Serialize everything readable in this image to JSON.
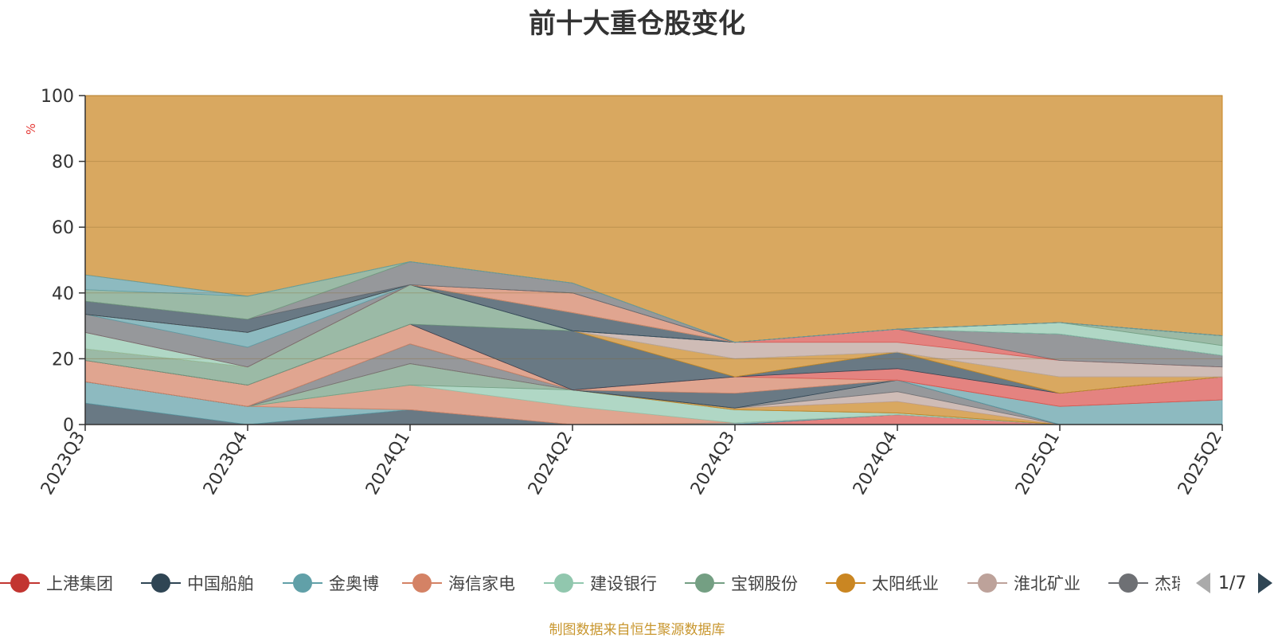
{
  "chart_data": {
    "type": "area",
    "title": "前十大重仓股变化",
    "ylabel": "%",
    "ylim": [
      0,
      100
    ],
    "yticks": [
      0,
      20,
      40,
      60,
      80,
      100
    ],
    "x": [
      "2023Q3",
      "2023Q4",
      "2024Q1",
      "2024Q2",
      "2024Q3",
      "2024Q4",
      "2025Q1",
      "2025Q2"
    ],
    "stacked": true,
    "grid": true,
    "legend_position": "bottom",
    "series": [
      {
        "name": "上港集团",
        "color": "#d9534f",
        "values": [
          0,
          0,
          0,
          0,
          0,
          3,
          0,
          0
        ]
      },
      {
        "name": "中国船舶",
        "color": "#2f4554",
        "values": [
          6.5,
          0,
          4.5,
          0,
          0,
          0,
          0,
          0
        ]
      },
      {
        "name": "金奥博",
        "color": "#61a0a8",
        "values": [
          6.5,
          5.5,
          0,
          0,
          0.5,
          0,
          0,
          0
        ]
      },
      {
        "name": "海信家电",
        "color": "#d48265",
        "values": [
          0,
          0,
          7.5,
          5.5,
          0,
          0,
          0,
          0
        ]
      },
      {
        "name": "建设银行",
        "color": "#91c7ae",
        "values": [
          0,
          0,
          0,
          5,
          4,
          0.5,
          0,
          0
        ]
      },
      {
        "name": "宝钢股份",
        "color": "#749f83",
        "values": [
          0,
          0,
          6.5,
          0,
          0,
          0,
          0,
          0
        ]
      },
      {
        "name": "太阳纸业",
        "color": "#ca8622",
        "values": [
          0,
          0,
          0,
          0,
          0.5,
          3.5,
          0,
          0
        ]
      },
      {
        "name": "淮北矿业",
        "color": "#bda29a",
        "values": [
          0,
          0,
          0,
          0,
          0,
          3,
          0,
          0
        ]
      },
      {
        "name": "杰瑞股份",
        "color": "#6e7074",
        "values": [
          0,
          0,
          6,
          0,
          0,
          3.5,
          0,
          0
        ]
      },
      {
        "name": "海信家电",
        "color": "#d48265",
        "values": [
          0,
          0,
          0,
          0,
          0,
          0,
          0,
          0
        ]
      },
      {
        "name": "中国船舶",
        "color": "#2f4554",
        "values": [
          0,
          0,
          0,
          0,
          4.5,
          0,
          0,
          0
        ]
      },
      {
        "name": "金奥博",
        "color": "#61a0a8",
        "values": [
          0,
          0,
          0,
          0,
          0,
          0,
          5.5,
          7.5
        ]
      },
      {
        "name": "海信家电",
        "color": "#d48265",
        "values": [
          6.5,
          6.5,
          6,
          0,
          5,
          0,
          0,
          0
        ]
      },
      {
        "name": "上港集团",
        "color": "#d9534f",
        "values": [
          0,
          0,
          0,
          0,
          0,
          3.5,
          4,
          7
        ]
      },
      {
        "name": "中国船舶",
        "color": "#2f4554",
        "values": [
          0,
          0,
          0,
          18,
          0,
          5,
          0,
          0
        ]
      },
      {
        "name": "宝钢股份",
        "color": "#749f83",
        "values": [
          3.5,
          5.5,
          12,
          0,
          0,
          0,
          0,
          0
        ]
      },
      {
        "name": "太阳纸业",
        "color": "#ca8622",
        "values": [
          0,
          0,
          0,
          0,
          5.5,
          0,
          5,
          0
        ]
      },
      {
        "name": "建设银行",
        "color": "#91c7ae",
        "values": [
          5,
          0,
          0,
          0,
          0,
          0,
          0,
          0
        ]
      },
      {
        "name": "淮北矿业",
        "color": "#bda29a",
        "values": [
          0,
          0,
          0,
          0,
          5,
          3,
          5,
          3
        ]
      },
      {
        "name": "上港集团",
        "color": "#d9534f",
        "values": [
          0,
          0,
          0,
          0,
          0,
          4,
          0,
          0
        ]
      },
      {
        "name": "杰瑞股份",
        "color": "#6e7074",
        "values": [
          5.5,
          6,
          0,
          0,
          0,
          0,
          8,
          3.5
        ]
      },
      {
        "name": "金奥博",
        "color": "#61a0a8",
        "values": [
          0,
          4.5,
          0,
          0,
          0,
          0,
          0,
          0
        ]
      },
      {
        "name": "淮北矿业",
        "color": "#bda29a",
        "values": [
          0,
          0,
          0,
          0,
          0,
          0,
          0,
          0
        ]
      },
      {
        "name": "中国船舶",
        "color": "#2f4554",
        "values": [
          0,
          0,
          0,
          5.5,
          0,
          0,
          0,
          0
        ]
      },
      {
        "name": "建设银行",
        "color": "#91c7ae",
        "values": [
          0,
          0,
          0,
          0,
          0,
          0,
          3.5,
          3
        ]
      },
      {
        "name": "淮北矿业",
        "color": "#bda29a",
        "values": [
          0,
          0,
          0,
          0,
          0,
          0,
          0,
          0
        ]
      },
      {
        "name": "宝钢股份",
        "color": "#749f83",
        "values": [
          0,
          0,
          0,
          0,
          0,
          0,
          0,
          3
        ]
      },
      {
        "name": "海信家电",
        "color": "#d48265",
        "values": [
          0,
          0,
          0,
          6,
          0,
          0,
          0,
          0
        ]
      },
      {
        "name": "中国船舶",
        "color": "#2f4554",
        "values": [
          4,
          4,
          0,
          0,
          0,
          0,
          0,
          0
        ]
      },
      {
        "name": "淮北矿业",
        "color": "#bda29a",
        "values": [
          0,
          0,
          0,
          0,
          0,
          0,
          0,
          0
        ]
      },
      {
        "name": "杰瑞股份",
        "color": "#6e7074",
        "values": [
          0,
          0,
          0,
          0,
          0,
          0,
          0,
          0
        ]
      },
      {
        "name": "杰瑞股份",
        "color": "#6e7074",
        "values": [
          0,
          0,
          7,
          3,
          0,
          0,
          0,
          0
        ]
      },
      {
        "name": "淮北矿业",
        "color": "#bda29a",
        "values": [
          0,
          0,
          0,
          0,
          0,
          0,
          0,
          0
        ]
      },
      {
        "name": "海信家电",
        "color": "#d48265",
        "values": [
          0,
          0,
          0,
          0,
          0,
          0,
          0,
          0
        ]
      },
      {
        "name": "金奥博",
        "color": "#61a0a8",
        "values": [
          0,
          0,
          0,
          0,
          0,
          0,
          0,
          0
        ]
      },
      {
        "name": "上港集团",
        "color": "#d9534f",
        "values": [
          0,
          0,
          0,
          0,
          0,
          0,
          0,
          0
        ]
      },
      {
        "name": "杰瑞股份",
        "color": "#6e7074",
        "values": [
          0,
          0,
          0,
          0,
          0,
          0,
          0,
          0
        ]
      },
      {
        "name": "淮北矿业",
        "color": "#bda29a",
        "values": [
          0,
          0,
          0,
          0,
          0,
          0,
          0,
          0
        ]
      },
      {
        "name": "宝钢股份",
        "color": "#749f83",
        "values": [
          3.5,
          7,
          0,
          0,
          0,
          0,
          0,
          0
        ]
      },
      {
        "name": "金奥博",
        "color": "#61a0a8",
        "values": [
          4.5,
          0,
          0,
          0,
          0,
          0,
          0,
          0
        ]
      },
      {
        "name": "杰瑞股份",
        "color": "#6e7074",
        "values": [
          0,
          0,
          0,
          0,
          0,
          0,
          0,
          0
        ]
      },
      {
        "name": "宝钢股份",
        "color": "#749f83",
        "values": [
          0,
          0,
          0,
          0,
          0,
          0,
          0,
          0
        ]
      },
      {
        "name": "杰瑞股份",
        "color": "#6e7074",
        "values": [
          0,
          0,
          0,
          0,
          0,
          0,
          0,
          0
        ]
      },
      {
        "name": "宝钢股份",
        "color": "#749f83",
        "values": [
          0,
          0,
          0,
          0,
          0,
          0,
          0,
          0
        ]
      },
      {
        "name": "杰瑞股份",
        "color": "#6e7074",
        "values": [
          0,
          0,
          0,
          0,
          0,
          0,
          0,
          0
        ]
      },
      {
        "name": "宝钢股份",
        "color": "#749f83",
        "values": [
          0,
          0,
          0,
          0,
          0,
          0,
          0,
          0
        ]
      },
      {
        "name": "杰瑞股份",
        "color": "#6e7074",
        "values": [
          0,
          0,
          0,
          0,
          0,
          0,
          0,
          0
        ]
      },
      {
        "name": "宝钢股份",
        "color": "#749f83",
        "values": [
          0,
          0,
          0,
          0,
          0,
          0,
          0,
          0
        ]
      },
      {
        "name": "杰瑞股份",
        "color": "#6e7074",
        "values": [
          0,
          0,
          0,
          0,
          0,
          0,
          0,
          0
        ]
      },
      {
        "name": "宝钢股份",
        "color": "#749f83",
        "values": [
          0,
          0,
          0,
          0,
          0,
          0,
          0,
          0
        ]
      },
      {
        "name": "杰瑞股份",
        "color": "#6e7074",
        "values": [
          0,
          0,
          0,
          0,
          0,
          0,
          0,
          0
        ]
      },
      {
        "name": "宝钢股份",
        "color": "#749f83",
        "values": [
          0,
          0,
          0,
          0,
          0,
          0,
          0,
          0
        ]
      },
      {
        "name": "杰瑞股份",
        "color": "#6e7074",
        "values": [
          0,
          0,
          0,
          0,
          0,
          0,
          0,
          0
        ]
      },
      {
        "name": "宝钢股份",
        "color": "#749f83",
        "values": [
          0,
          0,
          0,
          0,
          0,
          0,
          0,
          0
        ]
      },
      {
        "name": "杰瑞股份",
        "color": "#6e7074",
        "values": [
          0,
          0,
          0,
          0,
          0,
          0,
          0,
          0
        ]
      },
      {
        "name": "宝钢股份",
        "color": "#749f83",
        "values": [
          0,
          0,
          0,
          0,
          0,
          0,
          0,
          0
        ]
      },
      {
        "name": "杰瑞股份",
        "color": "#6e7074",
        "values": [
          0,
          0,
          0,
          0,
          0,
          0,
          0,
          0
        ]
      },
      {
        "name": "宝钢股份",
        "color": "#749f83",
        "values": [
          0,
          0,
          0,
          0,
          0,
          0,
          0,
          0
        ]
      },
      {
        "name": "杰瑞股份",
        "color": "#6e7074",
        "values": [
          0,
          0,
          0,
          0,
          0,
          0,
          0,
          0
        ]
      },
      {
        "name": "宝钢股份",
        "color": "#749f83",
        "values": [
          0,
          0,
          0,
          0,
          0,
          0,
          0,
          0
        ]
      },
      {
        "name": "杰瑞股份",
        "color": "#6e7074",
        "values": [
          0,
          0,
          0,
          0,
          0,
          0,
          0,
          0
        ]
      },
      {
        "name": "宝钢股份",
        "color": "#749f83",
        "values": [
          0,
          0,
          0,
          0,
          0,
          0,
          0,
          0
        ]
      },
      {
        "name": "杰瑞股份",
        "color": "#6e7074",
        "values": [
          0,
          0,
          0,
          0,
          0,
          0,
          0,
          0
        ]
      },
      {
        "name": "宝钢股份",
        "color": "#749f83",
        "values": [
          0,
          0,
          0,
          0,
          0,
          0,
          0,
          0
        ]
      },
      {
        "name": "杰瑞股份",
        "color": "#6e7074",
        "values": [
          0,
          0,
          0,
          0,
          0,
          0,
          0,
          0
        ]
      },
      {
        "name": "宝钢股份",
        "color": "#749f83",
        "values": [
          0,
          0,
          0,
          0,
          0,
          0,
          0,
          0
        ]
      },
      {
        "name": "杰瑞股份",
        "color": "#6e7074",
        "values": [
          0,
          0,
          0,
          0,
          0,
          0,
          0,
          0
        ]
      },
      {
        "name": "宝钢股份",
        "color": "#749f83",
        "values": [
          0,
          0,
          0,
          0,
          0,
          0,
          0,
          0
        ]
      },
      {
        "name": "杰瑞股份",
        "color": "#6e7074",
        "values": [
          0,
          0,
          0,
          0,
          0,
          0,
          0,
          0
        ]
      },
      {
        "name": "宝钢股份",
        "color": "#749f83",
        "values": [
          0,
          0,
          0,
          0,
          0,
          0,
          0,
          0
        ]
      },
      {
        "name": "杰瑞股份",
        "color": "#6e7074",
        "values": [
          0,
          0,
          0,
          0,
          0,
          0,
          0,
          0
        ]
      },
      {
        "name": "宝钢股份",
        "color": "#749f83",
        "values": [
          0,
          0,
          0,
          0,
          0,
          0,
          0,
          0
        ]
      },
      {
        "name": "杰瑞股份",
        "color": "#6e7074",
        "values": [
          0,
          0,
          0,
          0,
          0,
          0,
          0,
          0
        ]
      },
      {
        "name": "宝钢股份",
        "color": "#749f83",
        "values": [
          0,
          0,
          0,
          0,
          0,
          0,
          0,
          0
        ]
      },
      {
        "name": "杰瑞股份",
        "color": "#6e7074",
        "values": [
          0,
          0,
          0,
          0,
          0,
          0,
          0,
          0
        ]
      },
      {
        "name": "宝钢股份",
        "color": "#749f83",
        "values": [
          0,
          0,
          0,
          0,
          0,
          0,
          0,
          0
        ]
      },
      {
        "name": "杰瑞股份",
        "color": "#6e7074",
        "values": [
          0,
          0,
          0,
          0,
          0,
          0,
          0,
          0
        ]
      },
      {
        "name": "宝钢股份",
        "color": "#749f83",
        "values": [
          0,
          0,
          0,
          0,
          0,
          0,
          0,
          0
        ]
      }
    ]
  },
  "legend": {
    "items": [
      {
        "label": "上港集团",
        "color": "#c23531"
      },
      {
        "label": "中国船舶",
        "color": "#2f4554"
      },
      {
        "label": "金奥博",
        "color": "#61a0a8"
      },
      {
        "label": "海信家电",
        "color": "#d48265"
      },
      {
        "label": "建设银行",
        "color": "#91c7ae"
      },
      {
        "label": "宝钢股份",
        "color": "#749f83"
      },
      {
        "label": "太阳纸业",
        "color": "#ca8622"
      },
      {
        "label": "淮北矿业",
        "color": "#bda29a"
      },
      {
        "label": "杰瑞股份",
        "color": "#6e7074"
      }
    ],
    "page_text": "1/7",
    "prev_icon": "triangle-left-icon",
    "next_icon": "triangle-right-icon"
  },
  "source_note": "制图数据来自恒生聚源数据库"
}
